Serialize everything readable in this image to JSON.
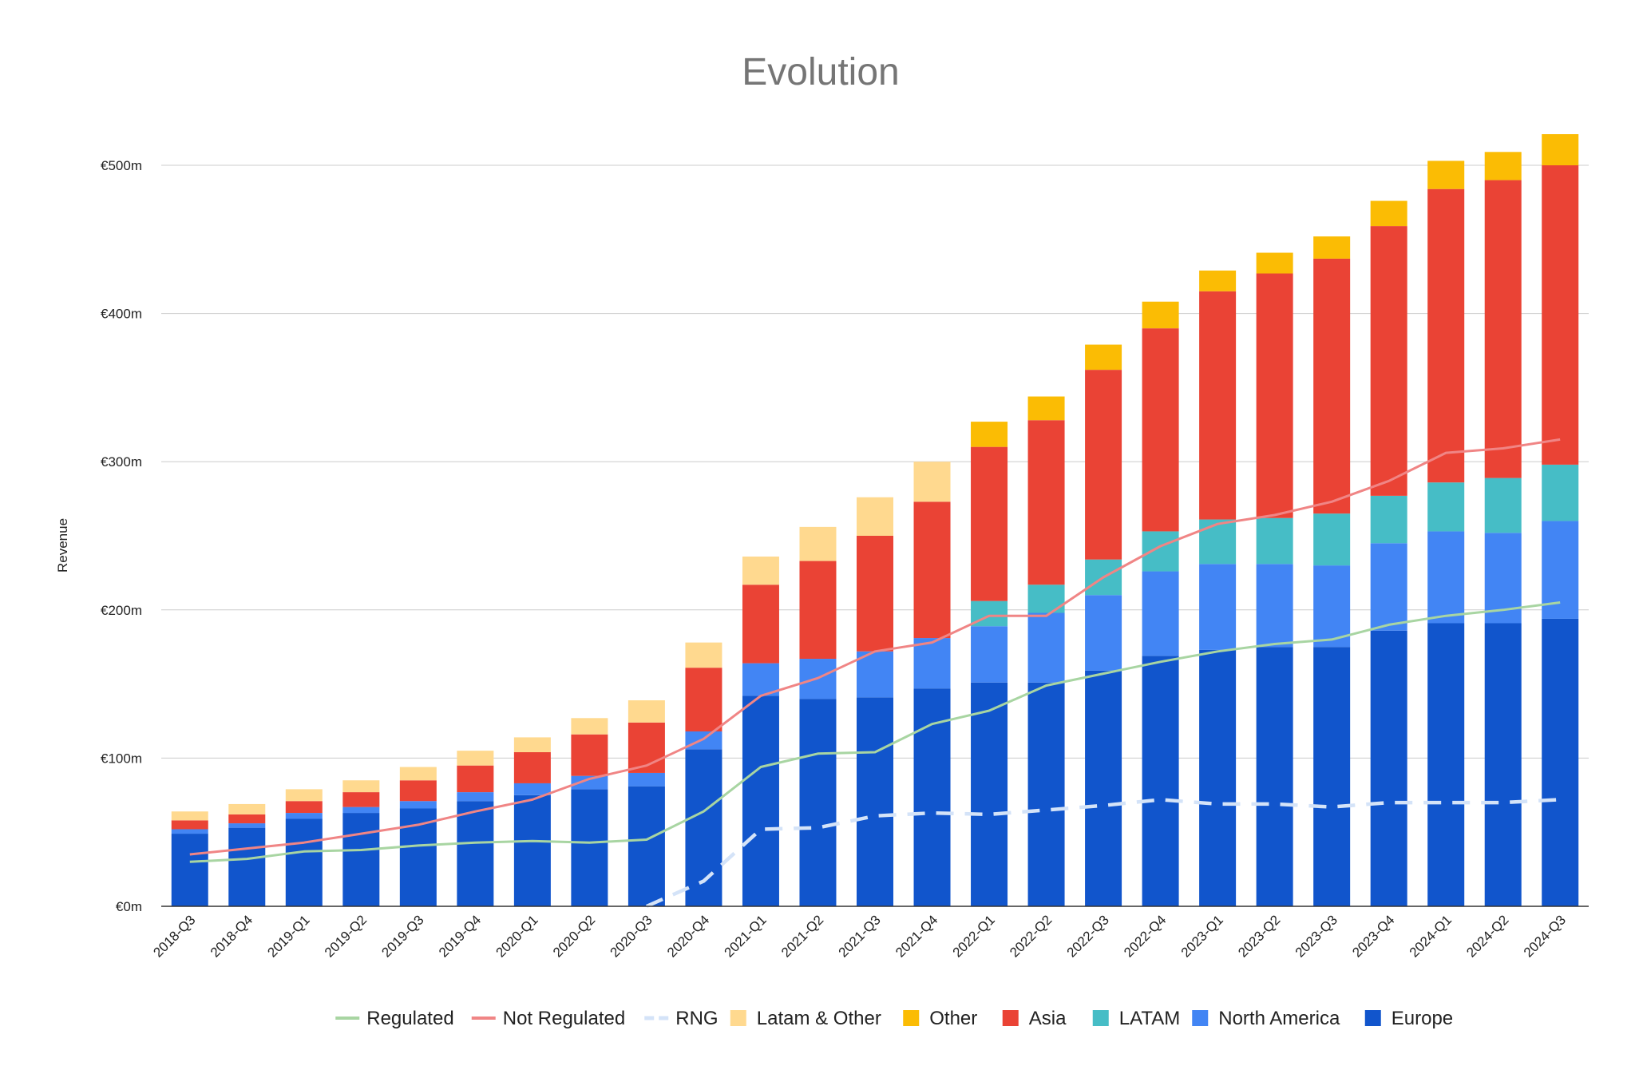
{
  "chart_data": {
    "type": "bar",
    "stacked": true,
    "title": "Evolution",
    "xlabel": "",
    "ylabel": "Revenue",
    "ylim": [
      0,
      500
    ],
    "yticks": [
      0,
      100,
      200,
      300,
      400,
      500
    ],
    "ytick_labels": [
      "€0m",
      "€100m",
      "€200m",
      "€300m",
      "€400m",
      "€500m"
    ],
    "grid": true,
    "legend_position": "bottom",
    "categories": [
      "2018-Q3",
      "2018-Q4",
      "2019-Q1",
      "2019-Q2",
      "2019-Q3",
      "2019-Q4",
      "2020-Q1",
      "2020-Q2",
      "2020-Q3",
      "2020-Q4",
      "2021-Q1",
      "2021-Q2",
      "2021-Q3",
      "2021-Q4",
      "2022-Q1",
      "2022-Q2",
      "2022-Q3",
      "2022-Q4",
      "2023-Q1",
      "2023-Q2",
      "2023-Q3",
      "2023-Q4",
      "2024-Q1",
      "2024-Q2",
      "2024-Q3"
    ],
    "stack_series": [
      {
        "name": "Europe",
        "color": "#1155cc",
        "values": [
          49,
          53,
          59,
          63,
          66,
          71,
          75,
          79,
          81,
          106,
          142,
          140,
          141,
          147,
          151,
          151,
          159,
          169,
          173,
          175,
          175,
          186,
          191,
          191,
          194
        ]
      },
      {
        "name": "North America",
        "color": "#4285f4",
        "values": [
          3,
          3,
          4,
          4,
          5,
          6,
          8,
          9,
          9,
          12,
          22,
          27,
          31,
          34,
          38,
          47,
          51,
          57,
          58,
          56,
          55,
          59,
          62,
          61,
          66
        ]
      },
      {
        "name": "LATAM",
        "color": "#46bdc6",
        "values": [
          0,
          0,
          0,
          0,
          0,
          0,
          0,
          0,
          0,
          0,
          0,
          0,
          0,
          0,
          17,
          19,
          24,
          27,
          30,
          31,
          35,
          32,
          33,
          37,
          38
        ]
      },
      {
        "name": "Asia",
        "color": "#ea4335",
        "values": [
          6,
          6,
          8,
          10,
          14,
          18,
          21,
          28,
          34,
          43,
          53,
          66,
          78,
          92,
          104,
          111,
          128,
          137,
          154,
          165,
          172,
          182,
          198,
          201,
          202
        ]
      },
      {
        "name": "Other",
        "color": "#fbbc04",
        "values": [
          0,
          0,
          0,
          0,
          0,
          0,
          0,
          0,
          0,
          0,
          0,
          0,
          0,
          0,
          17,
          16,
          17,
          18,
          14,
          14,
          15,
          17,
          19,
          19,
          21
        ]
      },
      {
        "name": "Latam & Other",
        "color": "#ffd98f",
        "values": [
          6,
          7,
          8,
          8,
          9,
          10,
          10,
          11,
          15,
          17,
          19,
          23,
          26,
          27,
          0,
          0,
          0,
          0,
          0,
          0,
          0,
          0,
          0,
          0,
          0
        ]
      }
    ],
    "line_series": [
      {
        "name": "Regulated",
        "color": "#a8d5a2",
        "dashed": false,
        "values": [
          30,
          32,
          37,
          38,
          41,
          43,
          44,
          43,
          45,
          64,
          94,
          103,
          104,
          123,
          132,
          149,
          157,
          165,
          172,
          177,
          180,
          190,
          196,
          200,
          205
        ]
      },
      {
        "name": "Not Regulated",
        "color": "#f08585",
        "dashed": false,
        "values": [
          35,
          39,
          43,
          49,
          55,
          64,
          72,
          86,
          95,
          113,
          142,
          154,
          172,
          178,
          196,
          196,
          222,
          243,
          258,
          264,
          273,
          287,
          306,
          309,
          315
        ]
      },
      {
        "name": "RNG",
        "color": "#d4e3f8",
        "dashed": true,
        "values": [
          null,
          null,
          null,
          null,
          null,
          null,
          null,
          null,
          0,
          17,
          52,
          53,
          61,
          63,
          62,
          65,
          68,
          72,
          69,
          69,
          67,
          70,
          70,
          70,
          72
        ]
      }
    ],
    "legend": [
      "Regulated",
      "Not Regulated",
      "RNG",
      "Latam & Other",
      "Other",
      "Asia",
      "LATAM",
      "North America",
      "Europe"
    ]
  }
}
